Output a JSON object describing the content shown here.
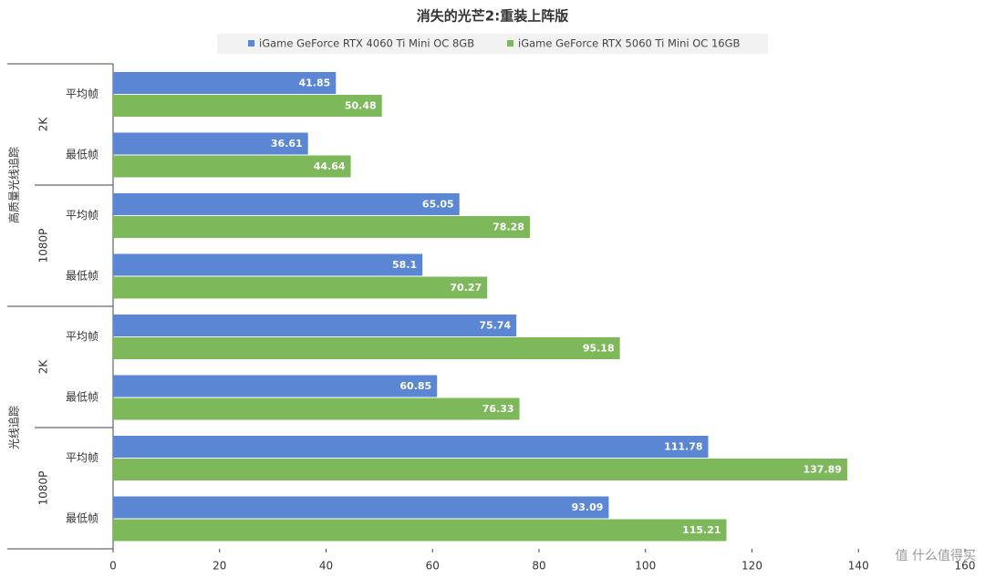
{
  "chart_data": {
    "type": "hbar",
    "title": "消失的光芒2:重装上阵版",
    "categories": [
      "平均帧",
      "最低帧",
      "平均帧",
      "最低帧",
      "平均帧",
      "最低帧",
      "平均帧",
      "最低帧"
    ],
    "groups": [
      {
        "name": "高质量光线追踪",
        "subgroups": [
          "2K",
          "1080P"
        ]
      },
      {
        "name": "光线追踪",
        "subgroups": [
          "2K",
          "1080P"
        ]
      }
    ],
    "series": [
      {
        "name": "iGame GeForce RTX 4060 Ti Mini OC 8GB",
        "color": "#5b86d3",
        "values": [
          41.85,
          36.61,
          65.05,
          58.1,
          75.74,
          60.85,
          111.78,
          93.09
        ]
      },
      {
        "name": "iGame GeForce RTX 5060 Ti Mini OC 16GB",
        "color": "#7db85a",
        "values": [
          50.48,
          44.64,
          78.28,
          70.27,
          95.18,
          76.33,
          137.89,
          115.21
        ]
      }
    ],
    "xlim": [
      0,
      160
    ],
    "xticks": [
      0,
      20,
      40,
      60,
      80,
      100,
      120,
      140,
      160
    ],
    "legend": "top",
    "watermark": "值 什么值得买"
  }
}
